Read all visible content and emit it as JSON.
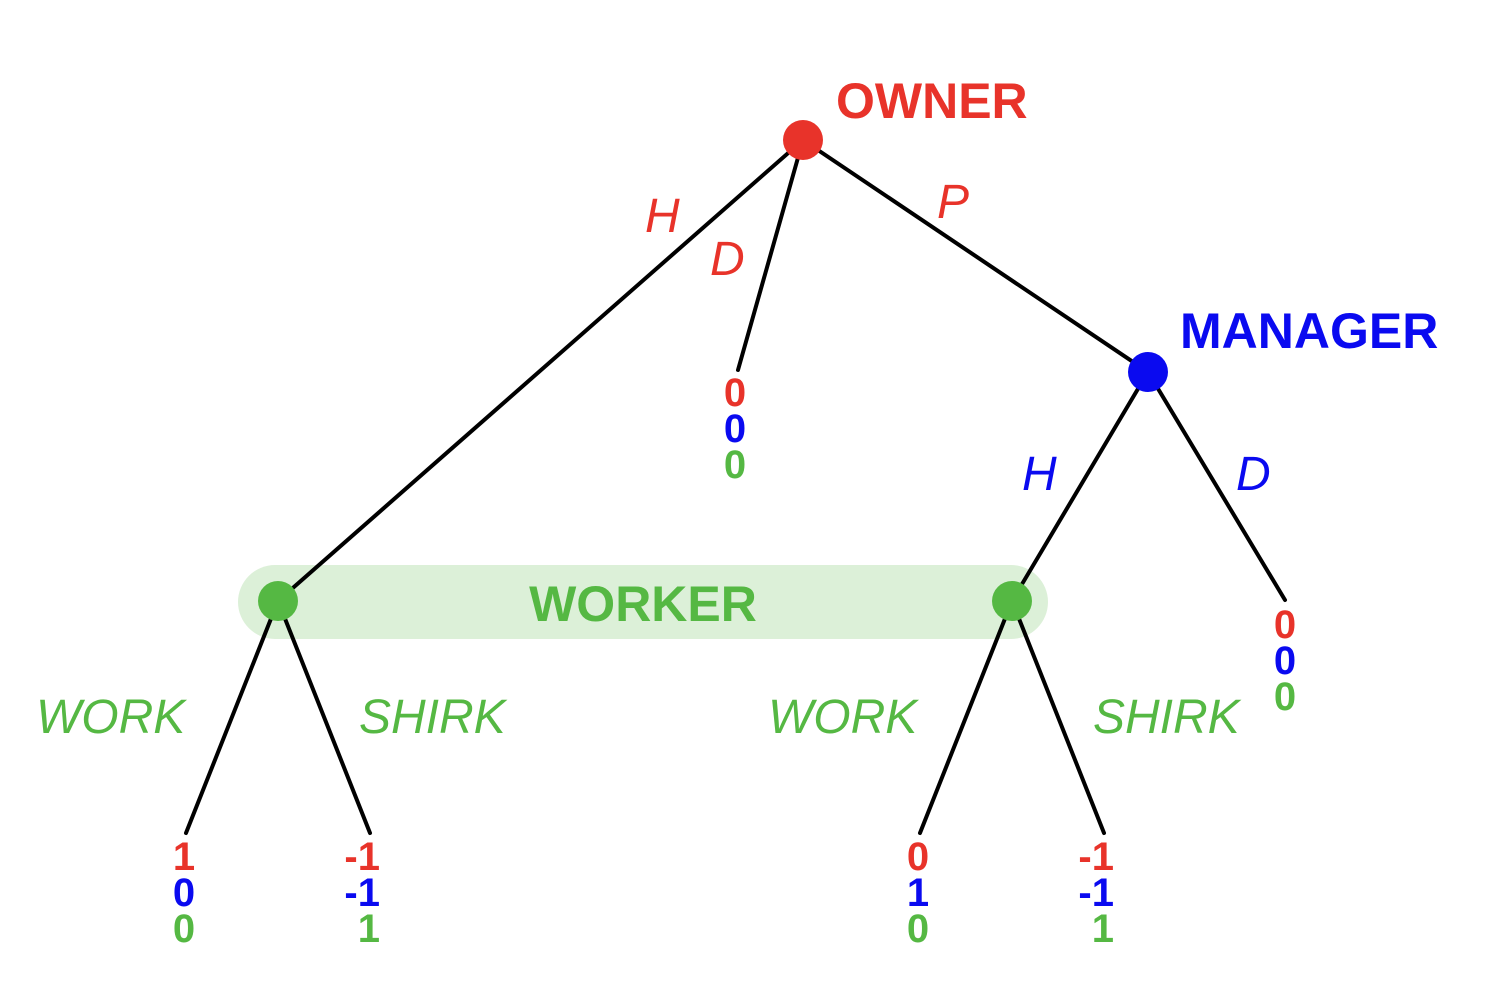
{
  "colors": {
    "owner": "#e8332a",
    "manager": "#0a0af0",
    "worker": "#55b843",
    "info_set_fill": "#dcf0d8",
    "edge": "#000000"
  },
  "players": {
    "owner": "OWNER",
    "manager": "MANAGER",
    "worker": "WORKER"
  },
  "moves": {
    "owner_hire": "H",
    "owner_dissolve": "D",
    "owner_partner": "P",
    "manager_hire": "H",
    "manager_dissolve": "D",
    "worker_left_work": "WORK",
    "worker_left_shirk": "SHIRK",
    "worker_right_work": "WORK",
    "worker_right_shirk": "SHIRK"
  },
  "payoffs": {
    "owner_dissolve": [
      "0",
      "0",
      "0"
    ],
    "manager_dissolve": [
      "0",
      "0",
      "0"
    ],
    "left_work": [
      "1",
      "0",
      "0"
    ],
    "left_shirk": [
      "-1",
      "-1",
      "1"
    ],
    "right_work": [
      "0",
      "1",
      "0"
    ],
    "right_shirk": [
      "-1",
      "-1",
      "1"
    ]
  }
}
